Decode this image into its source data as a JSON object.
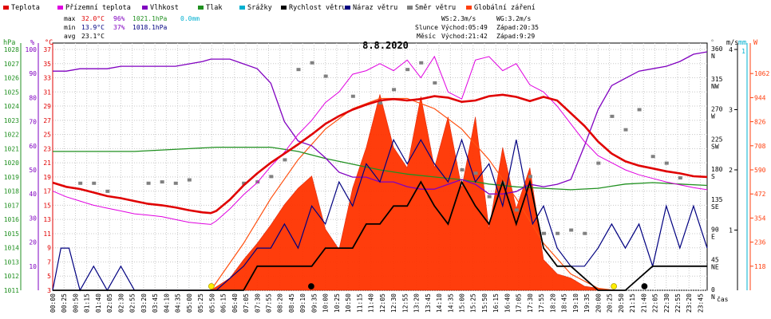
{
  "chart_data": {
    "type": "line",
    "title": "8.8.2020",
    "xlabel": "čas",
    "legend": [
      {
        "name": "Teplota",
        "color": "#e00000"
      },
      {
        "name": "Přízemní teplota",
        "color": "#e000e0"
      },
      {
        "name": "Vlhkost",
        "color": "#8000c0"
      },
      {
        "name": "Tlak",
        "color": "#209020"
      },
      {
        "name": "Srážky",
        "color": "#00b0d0"
      },
      {
        "name": "Rychlost větru",
        "color": "#000000"
      },
      {
        "name": "Náraz větru",
        "color": "#000080"
      },
      {
        "name": "Směr větru",
        "color": "#808080"
      },
      {
        "name": "Globální záření",
        "color": "#ff4010"
      }
    ],
    "stats": {
      "max": {
        "label": "max",
        "temp": "32.0°C",
        "hum": "96%",
        "press": "1021.1hPa",
        "rain": "0.0mm"
      },
      "min": {
        "label": "min",
        "temp": "13.9°C",
        "hum": "37%",
        "press": "1018.1hPa"
      },
      "avg": {
        "label": "avg",
        "temp": "23.1°C"
      }
    },
    "wind_stats": {
      "ws": "WS:2.3m/s",
      "wg": "WG:3.2m/s"
    },
    "sun": {
      "label": "Slunce",
      "rise": "Východ:05:49",
      "set": "Západ:20:35"
    },
    "moon": {
      "label": "Měsíc",
      "rise": "Východ:21:42",
      "set": "Západ:9:29"
    },
    "axes": {
      "press_unit": "hPa",
      "press_ticks": [
        1011,
        1012,
        1013,
        1014,
        1015,
        1016,
        1017,
        1018,
        1019,
        1020,
        1021,
        1022,
        1023,
        1024,
        1025,
        1026,
        1027,
        1028
      ],
      "hum_unit": "%",
      "hum_ticks": [
        10,
        20,
        30,
        40,
        50,
        60,
        70,
        80,
        90,
        100
      ],
      "temp_unit": "°C",
      "temp_ticks": [
        3,
        5,
        7,
        9,
        11,
        13,
        15,
        17,
        19,
        21,
        23,
        25,
        27,
        29,
        31,
        33,
        35,
        37
      ],
      "dir_unit": "°",
      "dir_ticks": [
        "0 N",
        "45 NE",
        "90 E",
        "135 SE",
        "180 S",
        "225 SW",
        "270 W",
        "315 NW",
        "360 N"
      ],
      "speed_unit": "m/s",
      "speed_ticks": [
        1,
        2,
        3,
        4
      ],
      "rain_unit": "mm",
      "rain_ticks": [
        1
      ],
      "rad_unit": "W",
      "rad_ticks": [
        118,
        236,
        354,
        472,
        590,
        708,
        826,
        944,
        1062
      ]
    },
    "x_ticks": [
      "00:00",
      "00:25",
      "00:50",
      "01:15",
      "01:40",
      "02:05",
      "02:30",
      "02:55",
      "03:20",
      "03:45",
      "04:10",
      "04:35",
      "05:00",
      "05:25",
      "05:50",
      "06:15",
      "06:40",
      "07:05",
      "07:30",
      "07:55",
      "08:20",
      "08:45",
      "09:10",
      "09:35",
      "10:00",
      "10:25",
      "10:50",
      "11:15",
      "11:40",
      "12:05",
      "12:30",
      "12:55",
      "13:20",
      "13:45",
      "14:10",
      "14:35",
      "15:00",
      "15:25",
      "15:50",
      "16:15",
      "16:40",
      "17:05",
      "17:30",
      "17:55",
      "18:20",
      "18:45",
      "19:10",
      "19:35",
      "20:00",
      "20:25",
      "20:50",
      "21:15",
      "21:40",
      "22:05",
      "22:30",
      "22:55",
      "23:20",
      "23:45"
    ],
    "x_range_hours": [
      0,
      24
    ],
    "temp_range": [
      3,
      37
    ],
    "hum_range": [
      0,
      100
    ],
    "press_range": [
      1011,
      1028
    ],
    "dir_range": [
      0,
      360
    ],
    "speed_range": [
      0,
      4
    ],
    "rad_range": [
      0,
      1180
    ],
    "series": [
      {
        "name": "Teplota",
        "unit": "°C",
        "x": [
          0,
          0.5,
          1,
          1.5,
          2,
          2.5,
          3,
          3.5,
          4,
          4.5,
          5,
          5.5,
          5.8,
          6,
          6.5,
          7,
          7.5,
          8,
          8.5,
          9,
          9.5,
          10,
          10.5,
          11,
          11.5,
          12,
          12.5,
          13,
          13.5,
          14,
          14.5,
          15,
          15.5,
          16,
          16.5,
          17,
          17.5,
          18,
          18.5,
          19,
          19.5,
          20,
          20.5,
          21,
          21.5,
          22,
          22.5,
          23,
          23.5,
          24
        ],
        "values": [
          18.2,
          17.6,
          17.3,
          16.8,
          16.3,
          16.0,
          15.6,
          15.2,
          15.0,
          14.7,
          14.3,
          14.0,
          13.9,
          14.2,
          15.8,
          17.8,
          19.5,
          21.0,
          22.3,
          23.6,
          25.0,
          26.5,
          27.6,
          28.5,
          29.2,
          29.8,
          30.0,
          29.8,
          30.0,
          30.4,
          30.2,
          29.6,
          29.8,
          30.4,
          30.6,
          30.3,
          29.7,
          30.3,
          29.8,
          28.0,
          26.2,
          24.0,
          22.3,
          21.2,
          20.6,
          20.2,
          19.8,
          19.5,
          19.1,
          19.0
        ]
      },
      {
        "name": "Přízemní teplota",
        "unit": "°C",
        "x": [
          0,
          0.5,
          1,
          1.5,
          2,
          2.5,
          3,
          3.5,
          4,
          4.5,
          5,
          5.5,
          5.8,
          6,
          6.5,
          7,
          7.5,
          8,
          8.5,
          9,
          9.5,
          10,
          10.5,
          11,
          11.5,
          12,
          12.5,
          13,
          13.5,
          14,
          14.5,
          15,
          15.5,
          16,
          16.5,
          17,
          17.5,
          18,
          18.5,
          19,
          19.5,
          20,
          20.5,
          21,
          21.5,
          22,
          22.5,
          23,
          23.5,
          24
        ],
        "values": [
          17.0,
          16.2,
          15.6,
          15.0,
          14.6,
          14.2,
          13.8,
          13.6,
          13.4,
          13.0,
          12.6,
          12.4,
          12.3,
          12.8,
          14.5,
          16.5,
          18.2,
          20.5,
          22.5,
          25.0,
          27.0,
          29.5,
          31.0,
          33.5,
          34.0,
          35.0,
          34.0,
          35.5,
          33.0,
          36.0,
          31.0,
          30.0,
          35.5,
          36.0,
          34.0,
          35.0,
          32.0,
          31.0,
          29.0,
          26.5,
          24.0,
          22.0,
          21.0,
          20.0,
          19.3,
          18.8,
          18.3,
          17.9,
          17.5,
          17.2
        ]
      },
      {
        "name": "Vlhkost",
        "unit": "%",
        "x": [
          0,
          0.5,
          1,
          1.5,
          2,
          2.5,
          3,
          3.5,
          4,
          4.5,
          5,
          5.5,
          5.8,
          6,
          6.5,
          7,
          7.5,
          8,
          8.5,
          9,
          9.5,
          10,
          10.5,
          11,
          11.5,
          12,
          12.5,
          13,
          13.5,
          14,
          14.5,
          15,
          15.5,
          16,
          16.5,
          17,
          17.5,
          18,
          18.5,
          19,
          19.5,
          20,
          20.5,
          21,
          21.5,
          22,
          22.5,
          23,
          23.5,
          24
        ],
        "values": [
          91,
          91,
          92,
          92,
          92,
          93,
          93,
          93,
          93,
          93,
          94,
          95,
          96,
          96,
          96,
          94,
          92,
          86,
          70,
          62,
          60,
          55,
          49,
          47,
          47,
          45,
          45,
          43,
          42,
          42,
          44,
          46,
          44,
          40,
          40,
          41,
          44,
          43,
          44,
          46,
          60,
          75,
          85,
          88,
          91,
          92,
          93,
          95,
          98,
          99
        ]
      },
      {
        "name": "Tlak",
        "unit": "hPa",
        "x": [
          0,
          1,
          2,
          3,
          4,
          5,
          6,
          7,
          8,
          9,
          10,
          11,
          12,
          13,
          14,
          15,
          16,
          17,
          18,
          19,
          20,
          21,
          22,
          23,
          24
        ],
        "values": [
          1020.8,
          1020.8,
          1020.8,
          1020.8,
          1020.9,
          1021.0,
          1021.1,
          1021.1,
          1021.1,
          1020.8,
          1020.3,
          1019.9,
          1019.5,
          1019.2,
          1019.0,
          1018.8,
          1018.5,
          1018.3,
          1018.2,
          1018.1,
          1018.2,
          1018.5,
          1018.6,
          1018.5,
          1018.4
        ]
      },
      {
        "name": "Rychlost větru",
        "unit": "m/s",
        "x": [
          0,
          1,
          2,
          3,
          4,
          5,
          6,
          7,
          7.5,
          8,
          9,
          9.5,
          10,
          11,
          11.5,
          12,
          12.5,
          13,
          13.5,
          14,
          14.5,
          15,
          15.5,
          16,
          16.5,
          17,
          17.5,
          18,
          18.5,
          19,
          19.5,
          20,
          21,
          22,
          23,
          24
        ],
        "values": [
          0,
          0,
          0,
          0,
          0,
          0,
          0,
          0,
          0.4,
          0.4,
          0.4,
          0.4,
          0.7,
          0.7,
          1.1,
          1.1,
          1.4,
          1.4,
          1.8,
          1.4,
          1.1,
          1.8,
          1.4,
          1.1,
          1.8,
          1.1,
          1.8,
          0.7,
          0.4,
          0.4,
          0.2,
          0,
          0,
          0.4,
          0.4,
          0.4
        ]
      },
      {
        "name": "Náraz větru",
        "unit": "m/s",
        "x": [
          0,
          0.3,
          0.6,
          1,
          1.5,
          2,
          2.5,
          3,
          4,
          5,
          5.5,
          6,
          7,
          7.5,
          8,
          8.5,
          9,
          9.5,
          10,
          10.5,
          11,
          11.5,
          12,
          12.5,
          13,
          13.5,
          14,
          14.5,
          15,
          15.5,
          16,
          16.5,
          17,
          17.3,
          17.6,
          18,
          18.5,
          19,
          19.5,
          20,
          20.5,
          21,
          21.5,
          22,
          22.5,
          23,
          23.5,
          24
        ],
        "values": [
          0,
          0.7,
          0.7,
          0,
          0.4,
          0,
          0.4,
          0,
          0,
          0,
          0,
          0,
          0.4,
          0.7,
          0.7,
          1.1,
          0.7,
          1.4,
          1.1,
          1.8,
          1.4,
          2.1,
          1.8,
          2.5,
          2.1,
          2.5,
          2.1,
          1.8,
          2.5,
          1.8,
          2.1,
          1.4,
          2.5,
          1.8,
          1.1,
          1.4,
          0.7,
          0.4,
          0.4,
          0.7,
          1.1,
          0.7,
          1.1,
          0.4,
          1.4,
          0.7,
          1.4,
          0.7
        ]
      },
      {
        "name": "Směr větru",
        "unit": "°",
        "x": [
          1,
          1.5,
          2,
          3.5,
          4,
          4.5,
          5,
          7,
          7.5,
          8,
          8.5,
          9,
          9.5,
          10,
          11,
          12,
          12.5,
          13,
          13.5,
          14,
          15,
          15.5,
          16,
          16.5,
          17,
          17.5,
          18,
          18.5,
          19,
          19.5,
          20,
          20.5,
          21,
          21.5,
          22,
          22.5,
          23
        ],
        "values": [
          160,
          160,
          148,
          160,
          162,
          160,
          165,
          160,
          162,
          170,
          195,
          330,
          340,
          320,
          290,
          280,
          300,
          330,
          340,
          310,
          180,
          175,
          140,
          160,
          120,
          170,
          85,
          85,
          90,
          85,
          190,
          260,
          240,
          270,
          200,
          190,
          168
        ]
      },
      {
        "name": "Globální záření",
        "unit": "W",
        "x": [
          5.8,
          6.5,
          7,
          7.5,
          8,
          8.5,
          9,
          9.5,
          10,
          10.5,
          11,
          11.5,
          12,
          12.5,
          13,
          13.5,
          14,
          14.5,
          15,
          15.5,
          16,
          16.5,
          17,
          17.5,
          18,
          18.5,
          19,
          19.5,
          20,
          20.5
        ],
        "values": [
          0,
          60,
          150,
          230,
          320,
          420,
          500,
          560,
          300,
          200,
          500,
          700,
          960,
          700,
          600,
          950,
          600,
          850,
          500,
          850,
          300,
          700,
          400,
          600,
          150,
          80,
          60,
          20,
          10,
          0
        ]
      }
    ],
    "solar_theoretical": {
      "x": [
        5.8,
        7,
        8,
        9,
        10,
        11,
        12,
        13,
        14,
        15,
        16,
        17,
        18,
        19,
        20,
        20.6
      ],
      "values": [
        0,
        230,
        450,
        640,
        790,
        890,
        940,
        940,
        890,
        790,
        640,
        450,
        230,
        80,
        10,
        0
      ]
    },
    "markers": [
      {
        "kind": "sunrise",
        "time": 5.82
      },
      {
        "kind": "moonset",
        "time": 9.48
      },
      {
        "kind": "sunset",
        "time": 20.58
      },
      {
        "kind": "moonrise",
        "time": 21.7
      }
    ]
  }
}
